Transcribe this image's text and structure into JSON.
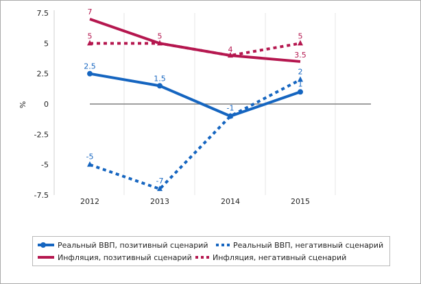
{
  "chart_data": {
    "type": "line",
    "ylabel": "%",
    "ylim": [
      -7.5,
      7.5
    ],
    "yticks": [
      "7.5",
      "5",
      "2.5",
      "0",
      "-2.5",
      "-5",
      "-7.5"
    ],
    "ytick_values": [
      7.5,
      5,
      2.5,
      0,
      -2.5,
      -5,
      -7.5
    ],
    "categories": [
      "2012",
      "2013",
      "2014",
      "2015"
    ],
    "grid": "vertical",
    "legend": "bottom",
    "series": [
      {
        "name": "Реальный ВВП, позитивный сценарий",
        "values": [
          2.5,
          1.5,
          -1,
          1
        ],
        "labels": [
          "2.5",
          "1.5",
          "-1",
          "1"
        ],
        "color": "#1565c0",
        "style": "solid",
        "marker": "circle"
      },
      {
        "name": "Реальный ВВП, негативный сценарий",
        "values": [
          -5,
          -7,
          -1,
          2
        ],
        "labels": [
          "-5",
          "-7",
          "",
          "2"
        ],
        "color": "#1565c0",
        "style": "dotted",
        "marker": "triangle"
      },
      {
        "name": "Инфляция, позитивный сценарий",
        "values": [
          7,
          5,
          4,
          3.5
        ],
        "labels": [
          "7",
          "",
          "4",
          "3.5"
        ],
        "color": "#b5174f",
        "style": "solid",
        "marker": "none"
      },
      {
        "name": "Инфляция, негативный сценарий",
        "values": [
          5,
          5,
          4,
          5
        ],
        "labels": [
          "5",
          "5",
          "",
          "5"
        ],
        "color": "#b5174f",
        "style": "dotted",
        "marker": "triangle"
      }
    ]
  }
}
